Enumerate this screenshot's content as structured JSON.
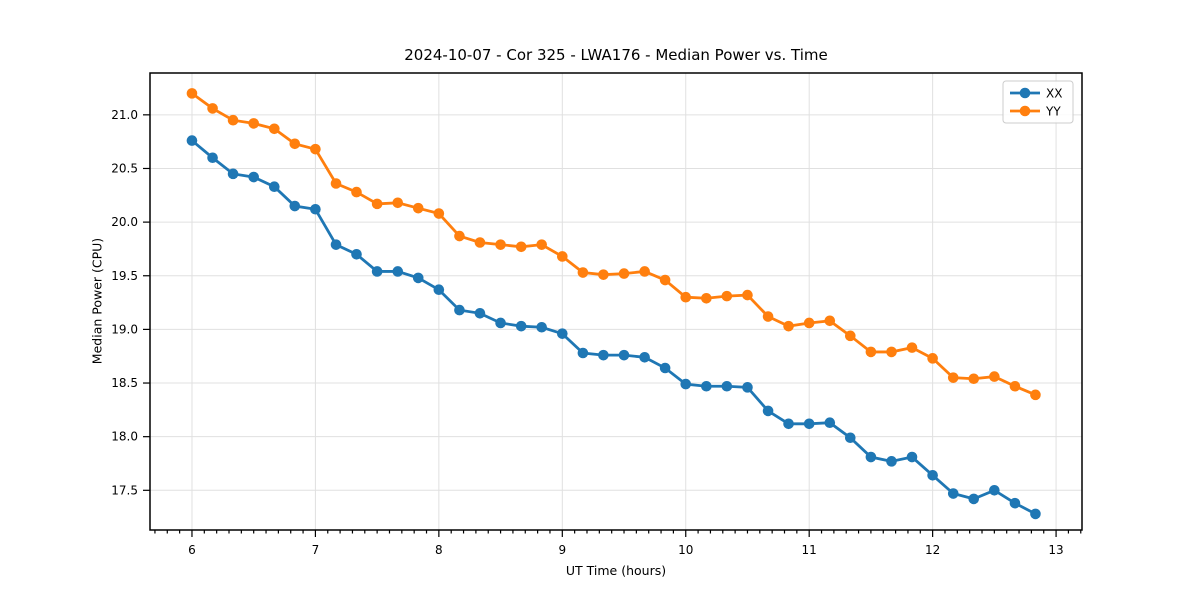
{
  "chart_data": {
    "type": "line",
    "title": "2024-10-07 - Cor 325 - LWA176 - Median Power vs. Time",
    "xlabel": "UT Time (hours)",
    "ylabel": "Median Power (CPU)",
    "xlim": [
      5.66,
      13.21
    ],
    "ylim": [
      17.13,
      21.39
    ],
    "grid": true,
    "legend_position": "upper right",
    "x_minor_step": 0.1,
    "xticks": [
      {
        "v": 6,
        "label": "6"
      },
      {
        "v": 7,
        "label": "7"
      },
      {
        "v": 8,
        "label": "8"
      },
      {
        "v": 9,
        "label": "9"
      },
      {
        "v": 10,
        "label": "10"
      },
      {
        "v": 11,
        "label": "11"
      },
      {
        "v": 12,
        "label": "12"
      },
      {
        "v": 13,
        "label": "13"
      }
    ],
    "yticks": [
      {
        "v": 17.5,
        "label": "17.5"
      },
      {
        "v": 18.0,
        "label": "18.0"
      },
      {
        "v": 18.5,
        "label": "18.5"
      },
      {
        "v": 19.0,
        "label": "19.0"
      },
      {
        "v": 19.5,
        "label": "19.5"
      },
      {
        "v": 20.0,
        "label": "20.0"
      },
      {
        "v": 20.5,
        "label": "20.5"
      },
      {
        "v": 21.0,
        "label": "21.0"
      }
    ],
    "x": [
      6.0,
      6.167,
      6.333,
      6.5,
      6.667,
      6.833,
      7.0,
      7.167,
      7.333,
      7.5,
      7.667,
      7.833,
      8.0,
      8.167,
      8.333,
      8.5,
      8.667,
      8.833,
      9.0,
      9.167,
      9.333,
      9.5,
      9.667,
      9.833,
      10.0,
      10.167,
      10.333,
      10.5,
      10.667,
      10.833,
      11.0,
      11.167,
      11.333,
      11.5,
      11.667,
      11.833,
      12.0,
      12.167,
      12.333,
      12.5,
      12.667,
      12.833
    ],
    "series": [
      {
        "name": "XX",
        "color": "#1f77b4",
        "values": [
          20.76,
          20.6,
          20.45,
          20.42,
          20.33,
          20.15,
          20.12,
          19.79,
          19.7,
          19.54,
          19.54,
          19.48,
          19.37,
          19.18,
          19.15,
          19.06,
          19.03,
          19.02,
          18.96,
          18.78,
          18.76,
          18.76,
          18.74,
          18.64,
          18.49,
          18.47,
          18.47,
          18.46,
          18.24,
          18.12,
          18.12,
          18.13,
          17.99,
          17.81,
          17.77,
          17.81,
          17.64,
          17.47,
          17.42,
          17.5,
          17.38,
          17.28
        ]
      },
      {
        "name": "YY",
        "color": "#ff7f0e",
        "values": [
          21.2,
          21.06,
          20.95,
          20.92,
          20.87,
          20.73,
          20.68,
          20.36,
          20.28,
          20.17,
          20.18,
          20.13,
          20.08,
          19.87,
          19.81,
          19.79,
          19.77,
          19.79,
          19.68,
          19.53,
          19.51,
          19.52,
          19.54,
          19.46,
          19.3,
          19.29,
          19.31,
          19.32,
          19.12,
          19.03,
          19.06,
          19.08,
          18.94,
          18.79,
          18.79,
          18.83,
          18.73,
          18.55,
          18.54,
          18.56,
          18.47,
          18.39
        ]
      }
    ],
    "style": {
      "grid_color": "#e0e0e0",
      "spine_color": "#000000",
      "text_color": "#000000",
      "background": "#ffffff",
      "line_width": 2.8,
      "marker_radius": 5.3
    }
  }
}
